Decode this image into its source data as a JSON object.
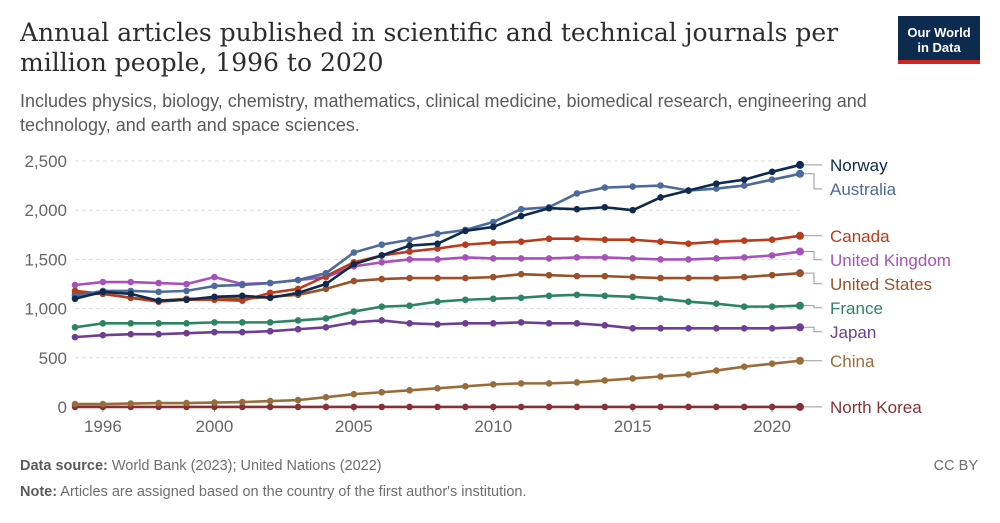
{
  "title": "Annual articles published in scientific and technical journals per million people, 1996 to 2020",
  "subtitle": "Includes physics, biology, chemistry, mathematics, clinical medicine, biomedical research, engineering and technology, and earth and space sciences.",
  "logo": {
    "line1": "Our World",
    "line2": "in Data"
  },
  "footer": {
    "source_label": "Data source:",
    "source_text": "World Bank (2023); United Nations (2022)",
    "note_label": "Note:",
    "note_text": "Articles are assigned based on the country of the first author's institution.",
    "license": "CC BY"
  },
  "chart_data": {
    "type": "line",
    "title": "Annual articles published in scientific and technical journals per million people, 1996 to 2020",
    "xlabel": "",
    "ylabel": "",
    "xlim": [
      1995,
      2021
    ],
    "ylim": [
      0,
      2500
    ],
    "x": [
      1995,
      1996,
      1997,
      1998,
      1999,
      2000,
      2001,
      2002,
      2003,
      2004,
      2005,
      2006,
      2007,
      2008,
      2009,
      2010,
      2011,
      2012,
      2013,
      2014,
      2015,
      2016,
      2017,
      2018,
      2019,
      2020,
      2021
    ],
    "x_ticks": [
      "1996",
      "2000",
      "2005",
      "2010",
      "2015",
      "2020"
    ],
    "x_tick_values": [
      1996,
      2000,
      2005,
      2010,
      2015,
      2020
    ],
    "y_ticks": [
      "0",
      "500",
      "1,000",
      "1,500",
      "2,000",
      "2,500"
    ],
    "y_tick_values": [
      0,
      500,
      1000,
      1500,
      2000,
      2500
    ],
    "grid": "horizontal dashed",
    "series": [
      {
        "name": "Norway",
        "color": "#0d2a4f",
        "values": [
          1100,
          1170,
          1150,
          1080,
          1090,
          1120,
          1130,
          1110,
          1160,
          1250,
          1450,
          1540,
          1640,
          1660,
          1790,
          1830,
          1940,
          2020,
          2010,
          2030,
          2000,
          2130,
          2200,
          2270,
          2310,
          2390,
          2460
        ]
      },
      {
        "name": "Australia",
        "color": "#4c6a9c",
        "values": [
          1130,
          1180,
          1180,
          1170,
          1180,
          1230,
          1240,
          1260,
          1290,
          1360,
          1570,
          1650,
          1700,
          1760,
          1800,
          1880,
          2010,
          2030,
          2170,
          2230,
          2240,
          2250,
          2200,
          2220,
          2250,
          2310,
          2370
        ]
      },
      {
        "name": "Canada",
        "color": "#b93c1c",
        "values": [
          1180,
          1150,
          1110,
          1070,
          1090,
          1090,
          1080,
          1160,
          1200,
          1330,
          1470,
          1540,
          1580,
          1610,
          1650,
          1670,
          1680,
          1710,
          1710,
          1700,
          1700,
          1680,
          1660,
          1680,
          1690,
          1700,
          1740
        ]
      },
      {
        "name": "United Kingdom",
        "color": "#a652ba",
        "values": [
          1240,
          1270,
          1270,
          1260,
          1250,
          1320,
          1250,
          1260,
          1290,
          1320,
          1430,
          1470,
          1500,
          1500,
          1520,
          1510,
          1510,
          1510,
          1520,
          1520,
          1510,
          1500,
          1500,
          1510,
          1520,
          1540,
          1580
        ]
      },
      {
        "name": "United States",
        "color": "#9a5129",
        "values": [
          1150,
          1150,
          1110,
          1080,
          1100,
          1100,
          1100,
          1120,
          1140,
          1200,
          1280,
          1300,
          1310,
          1310,
          1310,
          1320,
          1350,
          1340,
          1330,
          1330,
          1320,
          1310,
          1310,
          1310,
          1320,
          1340,
          1360
        ]
      },
      {
        "name": "France",
        "color": "#2c8465",
        "values": [
          810,
          850,
          850,
          850,
          850,
          860,
          860,
          860,
          880,
          900,
          970,
          1020,
          1030,
          1070,
          1090,
          1100,
          1110,
          1130,
          1140,
          1130,
          1120,
          1100,
          1070,
          1050,
          1020,
          1020,
          1030
        ]
      },
      {
        "name": "Japan",
        "color": "#6d3e91",
        "values": [
          710,
          730,
          740,
          740,
          750,
          760,
          760,
          770,
          790,
          810,
          860,
          880,
          850,
          840,
          850,
          850,
          860,
          850,
          850,
          830,
          800,
          800,
          800,
          800,
          800,
          800,
          810
        ]
      },
      {
        "name": "China",
        "color": "#996d39",
        "values": [
          30,
          30,
          35,
          40,
          40,
          45,
          50,
          60,
          70,
          100,
          130,
          150,
          170,
          190,
          210,
          230,
          240,
          240,
          250,
          270,
          290,
          310,
          330,
          370,
          410,
          440,
          470
        ]
      },
      {
        "name": "North Korea",
        "color": "#883039",
        "values": [
          1,
          1,
          1,
          1,
          1,
          1,
          1,
          1,
          1,
          1,
          1,
          1,
          1,
          1,
          1,
          1,
          1,
          1,
          1,
          1,
          1,
          1,
          1,
          1,
          1,
          1,
          1
        ]
      }
    ]
  }
}
